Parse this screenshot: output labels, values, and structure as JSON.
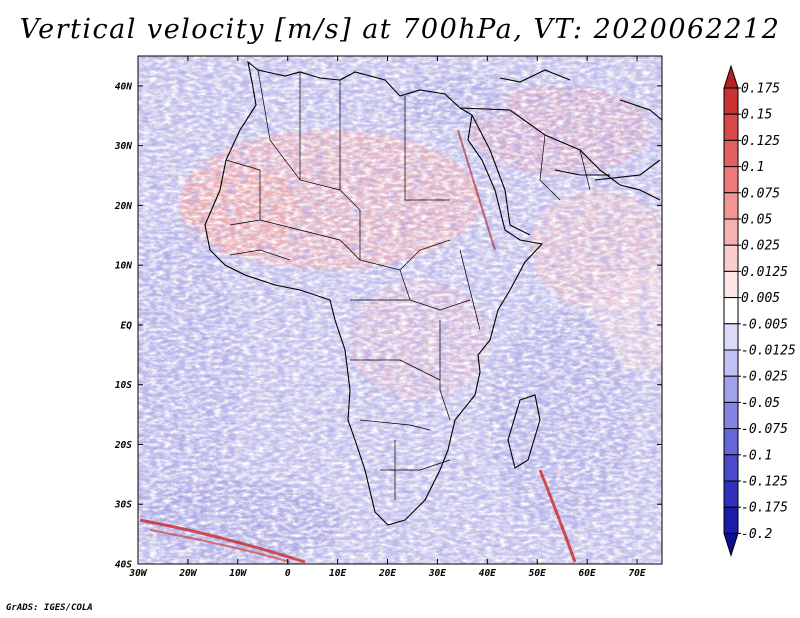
{
  "title": "Vertical velocity [m/s] at 700hPa, VT: 2020062212",
  "credit": "GrADS: IGES/COLA",
  "map": {
    "lon_range": [
      -30,
      75
    ],
    "lat_range": [
      -40,
      45
    ],
    "lon_ticks": [
      {
        "lon": -30,
        "label": "30W"
      },
      {
        "lon": -20,
        "label": "20W"
      },
      {
        "lon": -10,
        "label": "10W"
      },
      {
        "lon": 0,
        "label": "0"
      },
      {
        "lon": 10,
        "label": "10E"
      },
      {
        "lon": 20,
        "label": "20E"
      },
      {
        "lon": 30,
        "label": "30E"
      },
      {
        "lon": 40,
        "label": "40E"
      },
      {
        "lon": 50,
        "label": "50E"
      },
      {
        "lon": 60,
        "label": "60E"
      },
      {
        "lon": 70,
        "label": "70E"
      }
    ],
    "lat_ticks": [
      {
        "lat": 40,
        "label": "40N"
      },
      {
        "lat": 30,
        "label": "30N"
      },
      {
        "lat": 20,
        "label": "20N"
      },
      {
        "lat": 10,
        "label": "10N"
      },
      {
        "lat": 0,
        "label": "EQ"
      },
      {
        "lat": -10,
        "label": "10S"
      },
      {
        "lat": -20,
        "label": "20S"
      },
      {
        "lat": -30,
        "label": "30S"
      },
      {
        "lat": -40,
        "label": "40S"
      }
    ]
  },
  "colorbar": {
    "levels": [
      "0.175",
      "0.15",
      "0.125",
      "0.1",
      "0.075",
      "0.05",
      "0.025",
      "0.0125",
      "0.005",
      "-0.005",
      "-0.0125",
      "-0.025",
      "-0.05",
      "-0.075",
      "-0.1",
      "-0.125",
      "-0.175",
      "-0.2"
    ],
    "colors": [
      "#b22222",
      "#c83232",
      "#d84848",
      "#e46060",
      "#ec7a7a",
      "#f29696",
      "#f6b2b2",
      "#facccc",
      "#fde6e6",
      "#ffffff",
      "#dcdcf8",
      "#c0c0f2",
      "#a2a2ec",
      "#8484e2",
      "#6666d8",
      "#4a4acb",
      "#3030bb",
      "#1c1ca8",
      "#0f0f8c"
    ]
  }
}
